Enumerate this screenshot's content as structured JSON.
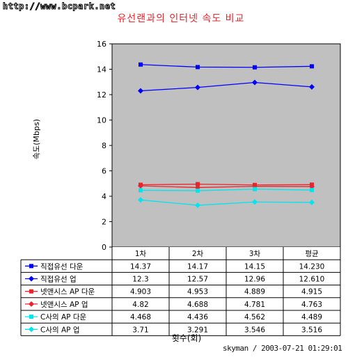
{
  "watermark": "http://www.bcpark.net",
  "signature": "skyman / 2003-07-21 01:29:01",
  "chart_data": {
    "type": "line",
    "title": "유선랜과의 인터넷 속도 비교",
    "ylabel": "속도(Mbps)",
    "xlabel": "횟수(회)",
    "categories": [
      "1차",
      "2차",
      "3차",
      "평균"
    ],
    "ylim": [
      0,
      16
    ],
    "yticks": [
      0,
      2,
      4,
      6,
      8,
      10,
      12,
      14,
      16
    ],
    "grid": false,
    "plot_background": "#c0c0c0",
    "legend": "data-table",
    "series": [
      {
        "name": "직접유선 다운",
        "values": [
          14.37,
          14.17,
          14.15,
          14.23
        ],
        "labels": [
          "14.37",
          "14.17",
          "14.15",
          "14.230"
        ],
        "color": "#0000ff",
        "marker": "square"
      },
      {
        "name": "직접유선 업",
        "values": [
          12.3,
          12.57,
          12.96,
          12.61
        ],
        "labels": [
          "12.3",
          "12.57",
          "12.96",
          "12.610"
        ],
        "color": "#0000ff",
        "marker": "diamond"
      },
      {
        "name": "넷앤시스 AP 다운",
        "values": [
          4.903,
          4.953,
          4.889,
          4.915
        ],
        "labels": [
          "4.903",
          "4.953",
          "4.889",
          "4.915"
        ],
        "color": "#e8242c",
        "marker": "square"
      },
      {
        "name": "넷앤시스 AP 업",
        "values": [
          4.82,
          4.688,
          4.781,
          4.763
        ],
        "labels": [
          "4.82",
          "4.688",
          "4.781",
          "4.763"
        ],
        "color": "#e8242c",
        "marker": "diamond"
      },
      {
        "name": "C사의 AP 다운",
        "values": [
          4.468,
          4.436,
          4.562,
          4.489
        ],
        "labels": [
          "4.468",
          "4.436",
          "4.562",
          "4.489"
        ],
        "color": "#00e5ee",
        "marker": "square"
      },
      {
        "name": "C사의 AP 업",
        "values": [
          3.71,
          3.291,
          3.546,
          3.516
        ],
        "labels": [
          "3.71",
          "3.291",
          "3.546",
          "3.516"
        ],
        "color": "#00e5ee",
        "marker": "diamond"
      }
    ]
  }
}
